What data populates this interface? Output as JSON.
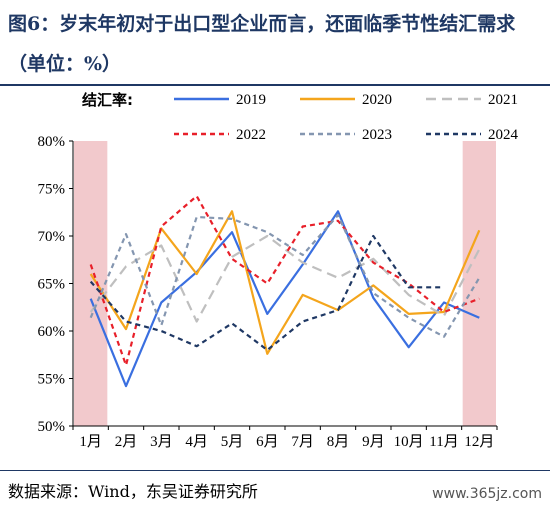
{
  "title": "图6：岁末年初对于出口型企业而言，还面临季节性结汇需求（单位：%）",
  "source": "数据来源：Wind，东吴证券研究所",
  "watermark": "www.365jz.com",
  "chart_data": {
    "type": "line",
    "legend_title": "结汇率:",
    "categories": [
      "1月",
      "2月",
      "3月",
      "4月",
      "5月",
      "6月",
      "7月",
      "8月",
      "9月",
      "10月",
      "11月",
      "12月"
    ],
    "yticks": [
      "50%",
      "55%",
      "60%",
      "65%",
      "70%",
      "75%",
      "80%"
    ],
    "ylim": [
      50,
      80
    ],
    "highlight_months": [
      "1月",
      "12月"
    ],
    "highlight_color": "#f2c9cc",
    "series": [
      {
        "name": "2019",
        "color": "#3a6fe0",
        "dash": "",
        "values": [
          63.4,
          54.2,
          63.0,
          66.2,
          70.4,
          61.8,
          67.0,
          72.6,
          63.5,
          58.3,
          63.0,
          61.4
        ]
      },
      {
        "name": "2020",
        "color": "#f4a51c",
        "dash": "",
        "values": [
          66.0,
          60.2,
          70.8,
          66.0,
          72.6,
          57.6,
          63.8,
          62.2,
          64.8,
          61.8,
          62.0,
          70.6
        ]
      },
      {
        "name": "2021",
        "color": "#bfbfbf",
        "dash": "10,6",
        "values": [
          62.0,
          66.8,
          69.0,
          61.0,
          67.8,
          70.0,
          67.2,
          65.6,
          67.6,
          63.8,
          61.6,
          68.6
        ]
      },
      {
        "name": "2022",
        "color": "#e8202a",
        "dash": "5,4",
        "values": [
          67.0,
          56.4,
          71.0,
          74.2,
          67.6,
          65.0,
          71.0,
          71.6,
          67.2,
          65.0,
          62.0,
          63.4
        ]
      },
      {
        "name": "2023",
        "color": "#8496b0",
        "dash": "5,4",
        "values": [
          61.4,
          70.2,
          60.6,
          72.0,
          71.8,
          70.4,
          68.0,
          72.2,
          64.0,
          61.4,
          59.4,
          65.6
        ]
      },
      {
        "name": "2024",
        "color": "#1f3864",
        "dash": "5,4",
        "values": [
          65.2,
          61.0,
          60.0,
          58.4,
          60.8,
          58.0,
          61.0,
          62.2,
          70.0,
          64.6,
          64.6,
          null
        ]
      }
    ]
  }
}
